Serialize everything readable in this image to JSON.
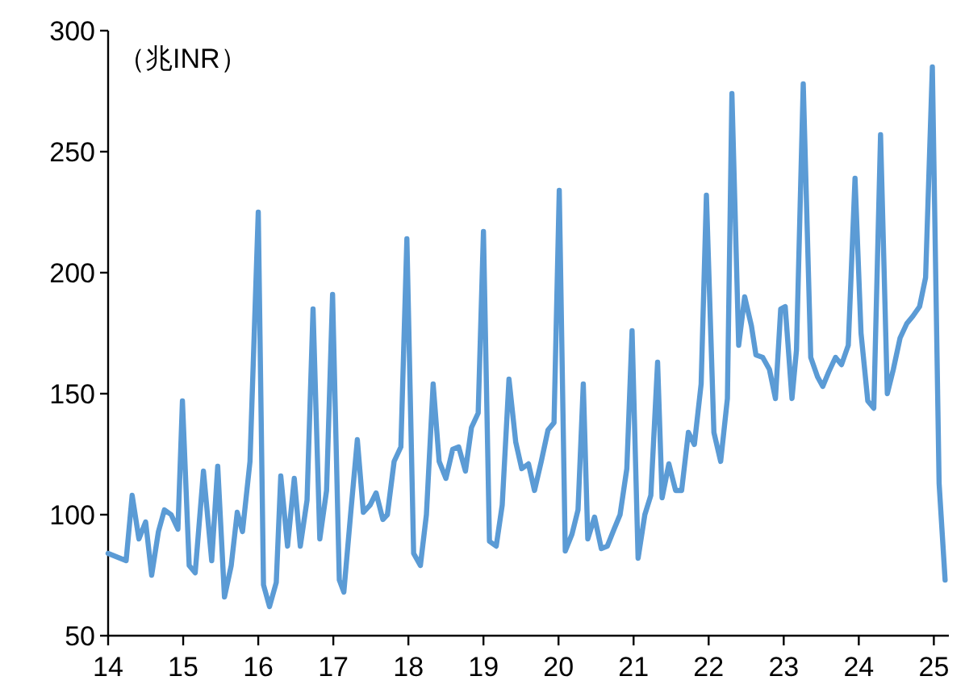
{
  "chart_data": {
    "type": "line",
    "ylabel": "（兆INR）",
    "xlim": [
      14,
      25.2
    ],
    "xticks": [
      14,
      15,
      16,
      17,
      18,
      19,
      20,
      21,
      22,
      23,
      24,
      25
    ],
    "ylim": [
      50,
      300
    ],
    "yticks": [
      50,
      100,
      150,
      200,
      250,
      300
    ],
    "grid": false,
    "marker": "none",
    "line_style": "solid",
    "series": [
      {
        "color": "#5b9bd5",
        "x": [
          14.0,
          14.24,
          14.32,
          14.41,
          14.5,
          14.58,
          14.67,
          14.75,
          14.84,
          14.93,
          14.99,
          15.08,
          15.16,
          15.27,
          15.38,
          15.46,
          15.55,
          15.64,
          15.72,
          15.79,
          15.89,
          16.0,
          16.07,
          16.15,
          16.24,
          16.3,
          16.39,
          16.48,
          16.56,
          16.65,
          16.73,
          16.82,
          16.91,
          16.99,
          17.08,
          17.14,
          17.23,
          17.32,
          17.4,
          17.49,
          17.57,
          17.66,
          17.72,
          17.81,
          17.9,
          17.98,
          18.07,
          18.16,
          18.24,
          18.33,
          18.41,
          18.5,
          18.59,
          18.67,
          18.76,
          18.84,
          18.93,
          19.0,
          19.08,
          19.17,
          19.25,
          19.34,
          19.43,
          19.51,
          19.6,
          19.68,
          19.77,
          19.86,
          19.94,
          20.01,
          20.09,
          20.18,
          20.26,
          20.33,
          20.39,
          20.48,
          20.57,
          20.65,
          20.74,
          20.82,
          20.91,
          20.98,
          21.06,
          21.15,
          21.23,
          21.32,
          21.38,
          21.47,
          21.56,
          21.64,
          21.73,
          21.81,
          21.9,
          21.97,
          22.07,
          22.16,
          22.25,
          22.31,
          22.4,
          22.48,
          22.57,
          22.63,
          22.72,
          22.81,
          22.89,
          22.96,
          23.02,
          23.11,
          23.17,
          23.26,
          23.36,
          23.45,
          23.52,
          23.6,
          23.69,
          23.77,
          23.86,
          23.95,
          24.03,
          24.12,
          24.2,
          24.29,
          24.38,
          24.46,
          24.55,
          24.64,
          24.72,
          24.81,
          24.89,
          24.98,
          25.07,
          25.15
        ],
        "values": [
          84,
          81,
          108,
          90,
          97,
          75,
          93,
          102,
          100,
          94,
          147,
          79,
          76,
          118,
          81,
          120,
          66,
          79,
          101,
          93,
          122,
          225,
          71,
          62,
          72,
          116,
          87,
          115,
          87,
          106,
          185,
          90,
          110,
          191,
          73,
          68,
          100,
          131,
          101,
          104,
          109,
          98,
          100,
          122,
          128,
          214,
          84,
          79,
          100,
          154,
          122,
          115,
          127,
          128,
          118,
          136,
          142,
          217,
          89,
          87,
          104,
          156,
          130,
          119,
          121,
          110,
          122,
          135,
          138,
          234,
          85,
          92,
          102,
          154,
          90,
          99,
          86,
          87,
          94,
          100,
          119,
          176,
          82,
          100,
          108,
          163,
          107,
          121,
          110,
          110,
          134,
          129,
          154,
          232,
          134,
          122,
          148,
          274,
          170,
          190,
          178,
          166,
          165,
          160,
          148,
          185,
          186,
          148,
          168,
          278,
          165,
          157,
          153,
          159,
          165,
          162,
          170,
          239,
          175,
          147,
          144,
          257,
          150,
          160,
          173,
          179,
          182,
          186,
          198,
          285,
          113,
          73
        ]
      }
    ]
  }
}
